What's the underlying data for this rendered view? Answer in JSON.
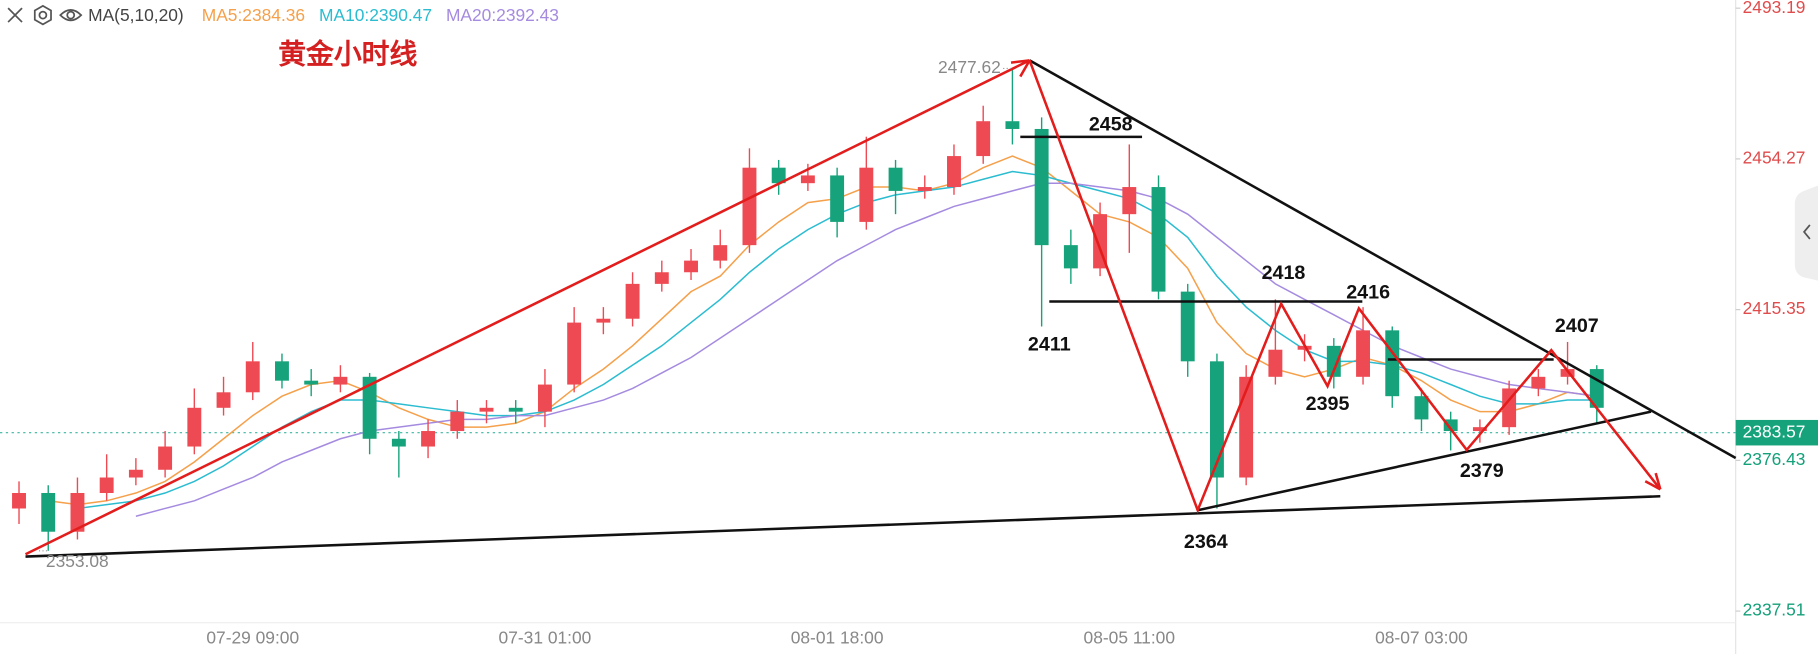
{
  "chart_data": {
    "type": "candlestick",
    "title": "黄金小时线",
    "indicator": "MA(5,10,20)",
    "categories": [
      null,
      null,
      null,
      null,
      null,
      null,
      null,
      null,
      "07-29 09:00",
      null,
      null,
      null,
      null,
      null,
      null,
      null,
      null,
      null,
      "07-31 01:00",
      null,
      null,
      null,
      null,
      null,
      null,
      null,
      null,
      null,
      "08-01 18:00",
      null,
      null,
      null,
      null,
      null,
      null,
      null,
      null,
      null,
      "08-05 11:00",
      null,
      null,
      null,
      null,
      null,
      null,
      null,
      null,
      null,
      "08-07 03:00",
      null,
      null,
      null,
      null,
      null,
      null
    ],
    "open": [
      2364,
      2368,
      2358,
      2368,
      2372,
      2374,
      2380,
      2390,
      2394,
      2402,
      2397,
      2396,
      2398,
      2382,
      2380,
      2384,
      2389,
      2390,
      2389,
      2396,
      2412,
      2413,
      2422,
      2425,
      2428,
      2432,
      2452,
      2448,
      2450,
      2438,
      2452,
      2446,
      2447,
      2455,
      2464,
      2462,
      2432,
      2426,
      2440,
      2447,
      2420,
      2402,
      2372,
      2398,
      2405,
      2406,
      2398,
      2410,
      2393,
      2387,
      2384,
      2385,
      2395,
      2398,
      2400
    ],
    "high": [
      2371,
      2370,
      2372,
      2378,
      2377,
      2384,
      2395,
      2398,
      2407,
      2404,
      2400,
      2401,
      2399,
      2384,
      2387,
      2392,
      2392,
      2392,
      2400,
      2416,
      2416,
      2425,
      2428,
      2431,
      2436,
      2457,
      2454,
      2453,
      2452,
      2460,
      2454,
      2450,
      2458,
      2468,
      2477.62,
      2465,
      2436,
      2443,
      2458,
      2450,
      2422,
      2404,
      2401,
      2418,
      2409,
      2408,
      2416,
      2411,
      2395,
      2389,
      2387,
      2397,
      2400,
      2407,
      2401
    ],
    "low": [
      2360,
      2353.08,
      2356,
      2366,
      2370,
      2372,
      2378,
      2388,
      2392,
      2395,
      2393,
      2394,
      2378,
      2372,
      2377,
      2382,
      2386,
      2386,
      2385,
      2394,
      2409,
      2411,
      2420,
      2423,
      2426,
      2430,
      2445,
      2446,
      2434,
      2436,
      2440,
      2444,
      2445,
      2453,
      2458,
      2411,
      2422,
      2424,
      2430,
      2418,
      2398,
      2364,
      2370,
      2396,
      2402,
      2395,
      2396,
      2390,
      2384,
      2379,
      2381,
      2383,
      2393,
      2396,
      2386
    ],
    "close": [
      2368,
      2358,
      2368,
      2372,
      2374,
      2380,
      2390,
      2394,
      2402,
      2397,
      2396,
      2398,
      2382,
      2380,
      2384,
      2389,
      2390,
      2389,
      2396,
      2412,
      2413,
      2422,
      2425,
      2428,
      2432,
      2452,
      2448,
      2450,
      2438,
      2452,
      2446,
      2447,
      2455,
      2464,
      2462,
      2432,
      2426,
      2440,
      2447,
      2420,
      2402,
      2372,
      2398,
      2405,
      2406,
      2398,
      2410,
      2393,
      2387,
      2384,
      2385,
      2395,
      2398,
      2400,
      2390
    ],
    "up_color": "#ee4a53",
    "down_color": "#16a37b",
    "ma_series": [
      {
        "label": "MA5:2384.36",
        "color": "#f5a04a",
        "values": [
          null,
          2366,
          2365,
          2366,
          2368,
          2371,
          2376,
          2382,
          2388,
          2393,
          2396,
          2397,
          2394,
          2390,
          2387,
          2385,
          2385,
          2386,
          2389,
          2395,
          2400,
          2406,
          2413,
          2420,
          2424,
          2432,
          2438,
          2443,
          2444,
          2447,
          2447,
          2446,
          2448,
          2452,
          2455,
          2452,
          2446,
          2440,
          2438,
          2434,
          2426,
          2412,
          2404,
          2400,
          2398,
          2400,
          2403,
          2401,
          2397,
          2392,
          2389,
          2389,
          2391,
          2394,
          2393
        ]
      },
      {
        "label": "MA10:2390.47",
        "color": "#2bbcd0",
        "values": [
          null,
          null,
          2364,
          2365,
          2366,
          2368,
          2371,
          2375,
          2380,
          2385,
          2389,
          2392,
          2392,
          2391,
          2390,
          2389,
          2388,
          2388,
          2389,
          2392,
          2396,
          2401,
          2406,
          2412,
          2418,
          2425,
          2431,
          2436,
          2440,
          2443,
          2445,
          2446,
          2447,
          2449,
          2451,
          2450,
          2448,
          2446,
          2444,
          2440,
          2434,
          2424,
          2416,
          2410,
          2405,
          2402,
          2402,
          2401,
          2399,
          2396,
          2393,
          2391,
          2391,
          2392,
          2392
        ]
      },
      {
        "label": "MA20:2392.43",
        "color": "#a58be0",
        "values": [
          null,
          null,
          null,
          null,
          2362,
          2364,
          2366,
          2369,
          2372,
          2376,
          2379,
          2382,
          2384,
          2385,
          2386,
          2387,
          2387,
          2388,
          2388,
          2390,
          2392,
          2395,
          2399,
          2403,
          2408,
          2413,
          2418,
          2423,
          2428,
          2432,
          2436,
          2439,
          2442,
          2444,
          2446,
          2448,
          2448,
          2447,
          2446,
          2444,
          2440,
          2434,
          2428,
          2422,
          2418,
          2414,
          2410,
          2406,
          2403,
          2400,
          2398,
          2396,
          2395,
          2394,
          2393
        ]
      }
    ],
    "ylim": [
      2334.52,
      2495.29
    ],
    "yticks": [
      2337.51,
      2376.43,
      2415.35,
      2454.27,
      2493.19
    ],
    "last_price": 2383.57,
    "high_marker": 2477.62,
    "low_marker": 2353.08,
    "annotations": [
      2458,
      2418,
      2416,
      2411,
      2395,
      2407,
      2379,
      2364
    ]
  }
}
